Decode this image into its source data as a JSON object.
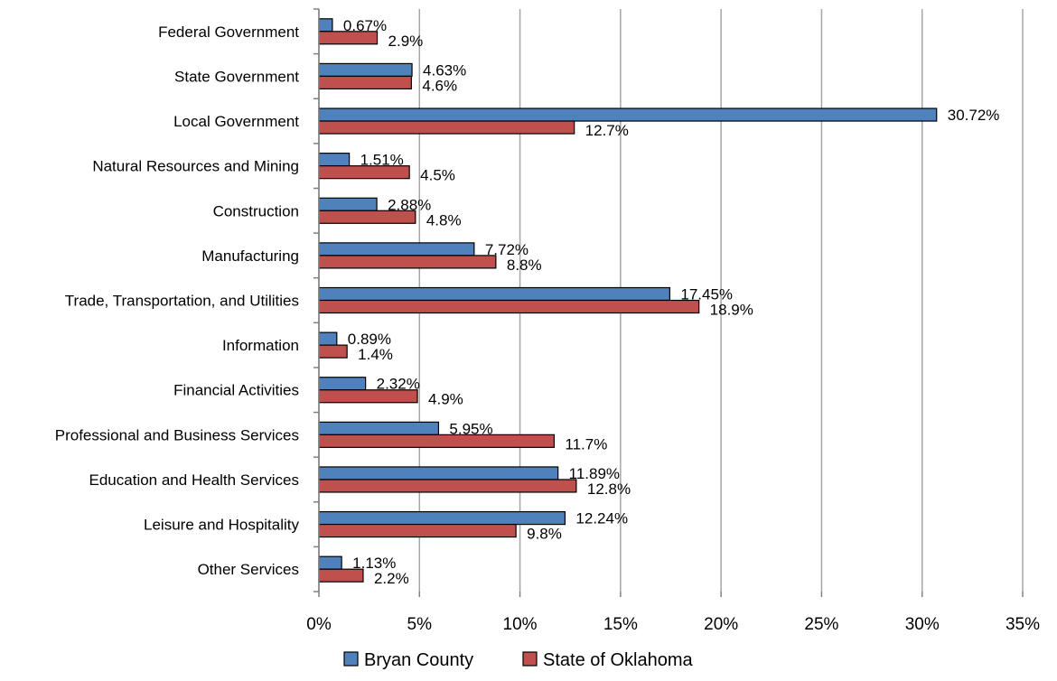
{
  "chart_data": {
    "type": "bar",
    "orientation": "horizontal",
    "title": "",
    "xlabel": "",
    "ylabel": "",
    "xlim": [
      0,
      35
    ],
    "x_ticks": [
      0,
      5,
      10,
      15,
      20,
      25,
      30,
      35
    ],
    "x_tick_labels": [
      "0%",
      "5%",
      "10%",
      "15%",
      "20%",
      "25%",
      "30%",
      "35%"
    ],
    "grid": "vertical",
    "legend_position": "bottom",
    "categories": [
      "Federal Government",
      "State Government",
      "Local Government",
      "Natural Resources and Mining",
      "Construction",
      "Manufacturing",
      "Trade, Transportation, and Utilities",
      "Information",
      "Financial Activities",
      "Professional and Business Services",
      "Education and Health Services",
      "Leisure and Hospitality",
      "Other Services"
    ],
    "series": [
      {
        "name": "Bryan County",
        "color": "#4F81BD",
        "values": [
          0.67,
          4.63,
          30.72,
          1.51,
          2.88,
          7.72,
          17.45,
          0.89,
          2.32,
          5.95,
          11.89,
          12.24,
          1.13
        ],
        "labels": [
          "0.67%",
          "4.63%",
          "30.72%",
          "1.51%",
          "2.88%",
          "7.72%",
          "17.45%",
          "0.89%",
          "2.32%",
          "5.95%",
          "11.89%",
          "12.24%",
          "1.13%"
        ]
      },
      {
        "name": "State of Oklahoma",
        "color": "#C0504D",
        "values": [
          2.9,
          4.6,
          12.7,
          4.5,
          4.8,
          8.8,
          18.9,
          1.4,
          4.9,
          11.7,
          12.8,
          9.8,
          2.2
        ],
        "labels": [
          "2.9%",
          "4.6%",
          "12.7%",
          "4.5%",
          "4.8%",
          "8.8%",
          "18.9%",
          "1.4%",
          "4.9%",
          "11.7%",
          "12.8%",
          "9.8%",
          "2.2%"
        ]
      }
    ]
  }
}
